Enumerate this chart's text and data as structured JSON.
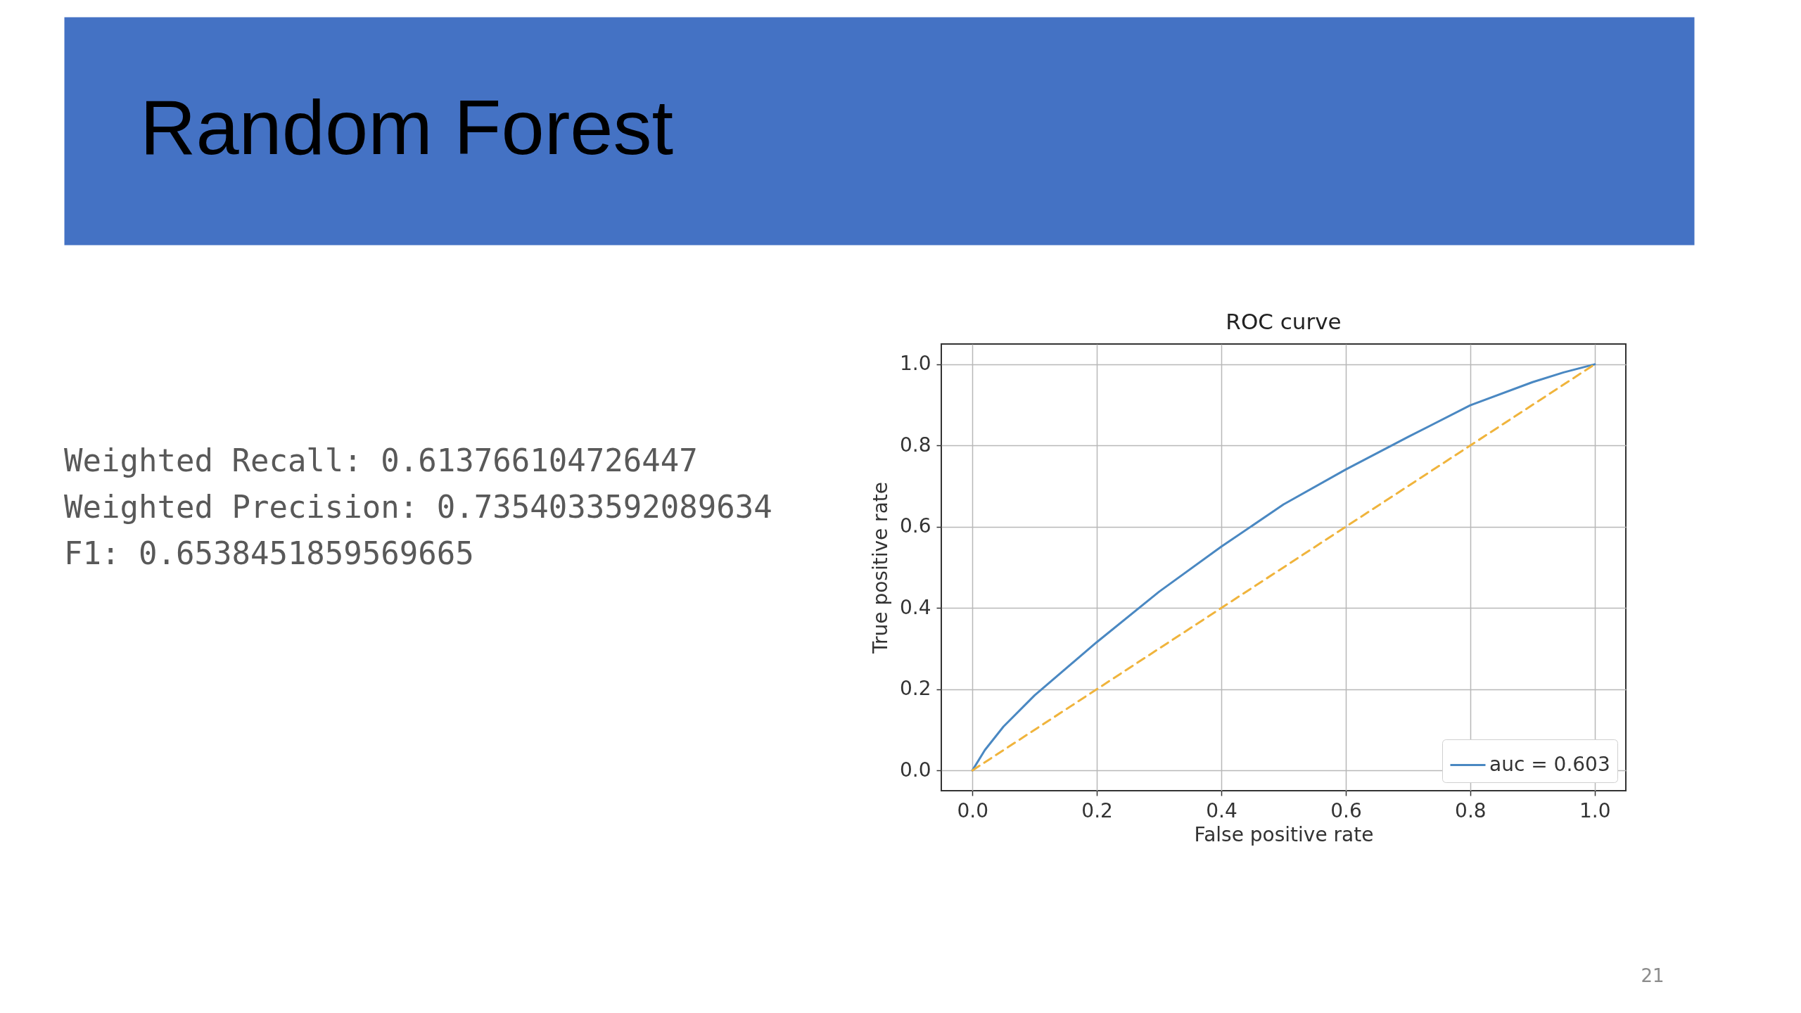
{
  "chart_data": {
    "type": "line",
    "title": "ROC curve",
    "xlabel": "False positive rate",
    "ylabel": "True positive rate",
    "series": [
      {
        "name": "auc = 0.603",
        "color": "#4a88c2",
        "line_style": "solid",
        "x": [
          0,
          0.02,
          0.05,
          0.1,
          0.2,
          0.3,
          0.4,
          0.5,
          0.6,
          0.7,
          0.8,
          0.9,
          0.95,
          1.0
        ],
        "values": [
          0,
          0.05,
          0.108,
          0.185,
          0.316,
          0.44,
          0.551,
          0.655,
          0.741,
          0.821,
          0.899,
          0.956,
          0.98,
          1.0
        ]
      },
      {
        "color": "#f0b43c",
        "line_style": "dashed",
        "x": [
          0,
          1
        ],
        "values": [
          0,
          1
        ]
      }
    ],
    "xlim": [
      -0.05,
      1.05
    ],
    "ylim": [
      -0.05,
      1.05
    ],
    "xticks": [
      {
        "value": 0,
        "label": "0.0"
      },
      0.2,
      0.4,
      0.6,
      0.8,
      {
        "value": 1,
        "label": "1.0"
      }
    ],
    "yticks": [
      {
        "value": 0,
        "label": "0.0"
      },
      0.2,
      0.4,
      0.6,
      0.8,
      {
        "value": 1,
        "label": "1.0"
      }
    ],
    "grid": true,
    "legend": "bottom right",
    "annotations": [
      "Random Forest",
      "Weighted Recall: 0.613766104726447",
      "Weighted Precision: 0.7354033592089634",
      "F1: 0.6538451859569665",
      "21"
    ]
  }
}
